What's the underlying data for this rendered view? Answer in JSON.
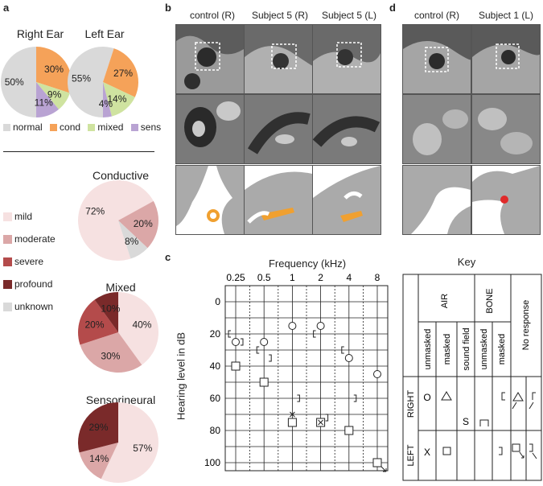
{
  "panels": {
    "a": "a",
    "b": "b",
    "c": "c",
    "d": "d"
  },
  "panel_a": {
    "right_ear_title": "Right Ear",
    "left_ear_title": "Left Ear",
    "type_legend": [
      "normal",
      "cond",
      "mixed",
      "sens"
    ],
    "severity_legend": [
      "mild",
      "moderate",
      "severe",
      "profound",
      "unknown"
    ],
    "conductive_title": "Conductive",
    "mixed_title": "Mixed",
    "sensorineural_title": "Sensorineural"
  },
  "panel_b": {
    "labels": [
      "control (R)",
      "Subject 5 (R)",
      "Subject 5 (L)"
    ]
  },
  "panel_d": {
    "labels": [
      "control (R)",
      "Subject 1 (L)"
    ]
  },
  "panel_c": {
    "xlabel": "Frequency (kHz)",
    "ylabel": "Hearing level in dB",
    "freq_ticks": [
      "0.25",
      "0.5",
      "1",
      "2",
      "4",
      "8"
    ],
    "db_ticks": [
      "0",
      "20",
      "40",
      "60",
      "80",
      "100"
    ],
    "key": {
      "title": "Key",
      "air": "AIR",
      "bone": "BONE",
      "no_response": "No response",
      "unmasked": "unmasked",
      "masked": "masked",
      "sound_field": "sound field",
      "right": "RIGHT",
      "left": "LEFT",
      "sym_right_unmasked": "O",
      "sym_left_unmasked": "X",
      "sym_sound_field": "S"
    }
  },
  "colors": {
    "normal": "#d9d9d9",
    "cond": "#f5a259",
    "mixed": "#cfe3a0",
    "sens": "#b9a3d3",
    "mild": "#f6e1e1",
    "moderate": "#dba7a7",
    "severe": "#b44b4b",
    "profound": "#7a2a2a",
    "unknown": "#d9d9d9"
  },
  "chart_data": [
    {
      "type": "pie",
      "title": "Right Ear",
      "labels": [
        "normal",
        "cond",
        "mixed",
        "sens"
      ],
      "values": [
        50,
        30,
        9,
        11
      ],
      "value_labels": [
        "50%",
        "30%",
        "9%",
        "11%"
      ]
    },
    {
      "type": "pie",
      "title": "Left Ear",
      "labels": [
        "normal",
        "cond",
        "mixed",
        "sens"
      ],
      "values": [
        55,
        27,
        14,
        4
      ],
      "value_labels": [
        "55%",
        "27%",
        "14%",
        "4%"
      ]
    },
    {
      "type": "pie",
      "title": "Conductive",
      "labels": [
        "mild",
        "moderate",
        "unknown"
      ],
      "values": [
        72,
        20,
        8
      ],
      "value_labels": [
        "72%",
        "20%",
        "8%"
      ]
    },
    {
      "type": "pie",
      "title": "Mixed",
      "labels": [
        "mild",
        "moderate",
        "severe",
        "profound"
      ],
      "values": [
        40,
        30,
        20,
        10
      ],
      "value_labels": [
        "40%",
        "30%",
        "20%",
        "10%"
      ]
    },
    {
      "type": "pie",
      "title": "Sensorineural",
      "labels": [
        "mild",
        "moderate",
        "profound"
      ],
      "values": [
        57,
        14,
        29
      ],
      "value_labels": [
        "57%",
        "14%",
        "29%"
      ]
    },
    {
      "type": "scatter",
      "xlabel": "Frequency (kHz)",
      "ylabel": "Hearing level in dB",
      "x_categories": [
        "0.25",
        "0.5",
        "1",
        "2",
        "4",
        "8"
      ],
      "ylim": [
        105,
        -10
      ],
      "series": [
        {
          "symbol": "O",
          "points": [
            [
              "0.25",
              25
            ],
            [
              "0.5",
              25
            ],
            [
              "1",
              15
            ],
            [
              "2",
              15
            ],
            [
              "4",
              35
            ],
            [
              "8",
              45
            ]
          ]
        },
        {
          "symbol": "[",
          "points": [
            [
              "0.25",
              20
            ],
            [
              "0.5",
              30
            ],
            [
              "2",
              20
            ],
            [
              "4",
              30
            ]
          ]
        },
        {
          "symbol": "]",
          "points": [
            [
              "0.25",
              25
            ],
            [
              "0.5",
              35
            ],
            [
              "1",
              60
            ],
            [
              "2",
              72
            ],
            [
              "4",
              60
            ]
          ]
        },
        {
          "symbol": "square",
          "points": [
            [
              "0.25",
              40
            ],
            [
              "0.5",
              50
            ],
            [
              "1",
              75
            ],
            [
              "2",
              75
            ],
            [
              "4",
              80
            ],
            [
              "8",
              100
            ]
          ]
        },
        {
          "symbol": "X",
          "points": [
            [
              "1",
              70
            ],
            [
              "2",
              75
            ]
          ]
        }
      ]
    }
  ]
}
